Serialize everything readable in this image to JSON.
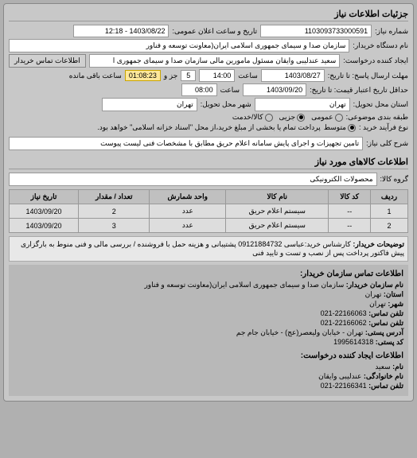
{
  "header": {
    "title": "جزئیات اطلاعات نیاز"
  },
  "fields": {
    "req_no_lbl": "شماره نیاز:",
    "req_no": "1103093733000591",
    "pub_time_lbl": "تاریخ و ساعت اعلان عمومی:",
    "pub_time": "1403/08/22 - 12:18",
    "buyer_org_lbl": "نام دستگاه خریدار:",
    "buyer_org": "سازمان صدا و سیمای جمهوری اسلامی ایران(معاونت توسعه و فناور",
    "creator_lbl": "ایجاد کننده درخواست:",
    "creator": "سعید عندلیبی وایقان مسئول مامورین مالی  سازمان صدا و سیمای جمهوری ا",
    "contact_btn": "اطلاعات تماس خریدار",
    "deadline_lbl": "مهلت ارسال پاسخ: تا تاریخ:",
    "deadline_date": "1403/08/27",
    "deadline_hour_lbl": "ساعت",
    "deadline_hour": "14:00",
    "remain_lbl1": "جز و",
    "remain_days": "5",
    "remain_time": "01:08:23",
    "remain_lbl2": "ساعت باقی مانده",
    "valid_lbl": "حداقل تاریخ اعتبار قیمت: تا تاریخ:",
    "valid_date": "1403/09/20",
    "valid_hour": "08:00",
    "prov_lbl": "استان محل تحویل:",
    "prov": "تهران",
    "city_lbl": "شهر محل تحویل:",
    "city": "تهران",
    "budget_lbl": "طبقه بندی موضوعی:",
    "budget_opts": [
      "عمومی",
      "جزیی",
      "کالا/خدمت"
    ],
    "budget_sel": 1,
    "buy_type_lbl": "نوع فرآیند خرید :",
    "buy_type_opts": [
      "متوسط"
    ],
    "buy_type_note": "پرداخت تمام یا بخشی از مبلغ خرید،از محل \"اسناد خزانه اسلامی\" خواهد بود.",
    "desc_lbl": "شرح کلی نیاز:",
    "desc": "تامین تجهیزات و اجرای پایش سامانه اعلام حریق مطابق با مشخصات فنی لیست پیوست"
  },
  "goods": {
    "title": "اطلاعات کالاهای مورد نیاز",
    "group_lbl": "گروه کالا:",
    "group": "محصولات الکترونیکی",
    "cols": [
      "ردیف",
      "کد کالا",
      "نام کالا",
      "واحد شمارش",
      "تعداد / مقدار",
      "تاریخ نیاز"
    ],
    "rows": [
      [
        "1",
        "--",
        "سیستم اعلام حریق",
        "عدد",
        "2",
        "1403/09/20"
      ],
      [
        "2",
        "--",
        "سیستم اعلام حریق",
        "عدد",
        "3",
        "1403/09/20"
      ]
    ]
  },
  "notes": {
    "lbl": "توضیحات خریدار:",
    "text": "کارشناس خرید:عباسی 09121884732 پشتیبانی و هزینه حمل با فروشنده / بررسی مالی و فنی منوط به بارگزاری پیش فاکتور پرداخت پس از نصب و تست و تایید فنی"
  },
  "contact": {
    "title": "اطلاعات تماس سازمان خریدار:",
    "org_lbl": "نام سازمان خریدار:",
    "org": "سازمان صدا و سیمای جمهوری اسلامی ایران(معاونت توسعه و فناور",
    "prov_lbl": "استان:",
    "prov": "تهران",
    "city_lbl": "شهر:",
    "city": "تهران",
    "tel_lbl": "تلفن تماس:",
    "tel": "22166063-021",
    "fax_lbl": "تلفن نماس:",
    "fax": "22166062-021",
    "addr_lbl": "آدرس پستی:",
    "addr": "تهران - خیابان ولیعصر(عج) - خیابان جام جم",
    "post_lbl": "کد پستی:",
    "post": "1995614318",
    "sub_title": "اطلاعات ایجاد کننده درخواست:",
    "fname_lbl": "نام:",
    "fname": "سعید",
    "lname_lbl": "نام خانوادگی:",
    "lname": "عندلیبی وایقان",
    "ctel_lbl": "تلفن تماس:",
    "ctel": "22166341-021"
  }
}
